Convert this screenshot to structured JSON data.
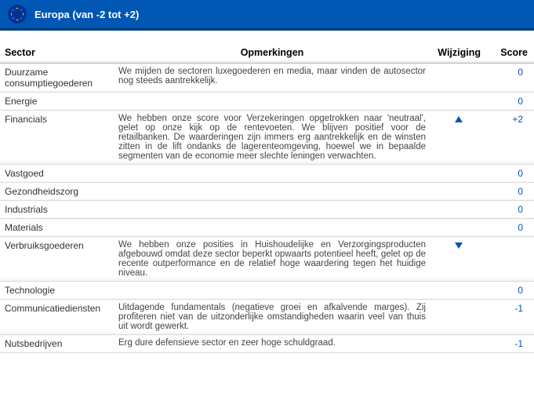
{
  "header": {
    "title": "Europa (van -2 tot +2)"
  },
  "columns": {
    "sector": "Sector",
    "remarks": "Opmerkingen",
    "change": "Wijziging",
    "score": "Score"
  },
  "rows": [
    {
      "sector": "Duurzame consumptiegoederen",
      "remarks": "We mijden de sectoren luxegoederen en media, maar vinden de autosector nog steeds aantrekkelijk.",
      "change": "",
      "score": "0"
    },
    {
      "sector": "Energie",
      "remarks": "",
      "change": "",
      "score": "0"
    },
    {
      "sector": "Financials",
      "remarks": "We hebben onze score voor Verzekeringen opgetrokken naar 'neutraal', gelet op onze kijk op de rentevoeten. We blijven positief voor de retailbanken. De waarderingen zijn immers erg aantrekkelijk en de winsten zitten in de lift ondanks de lagerenteomgeving, hoewel we in bepaalde segmenten van de economie meer slechte leningen verwachten.",
      "change": "up",
      "score": "+2"
    },
    {
      "sector": "Vastgoed",
      "remarks": "",
      "change": "",
      "score": "0"
    },
    {
      "sector": "Gezondheidszorg",
      "remarks": "",
      "change": "",
      "score": "0"
    },
    {
      "sector": "Industrials",
      "remarks": "",
      "change": "",
      "score": "0"
    },
    {
      "sector": "Materials",
      "remarks": "",
      "change": "",
      "score": "0"
    },
    {
      "sector": "Verbruiksgoederen",
      "remarks": "We hebben onze posities in Huishoudelijke en Verzorgingsproducten afgebouwd omdat deze sector beperkt opwaarts potentieel heeft, gelet op de recente outperformance en de relatief hoge waardering tegen het huidige niveau.",
      "change": "down",
      "score": ""
    },
    {
      "sector": "Technologie",
      "remarks": "",
      "change": "",
      "score": "0"
    },
    {
      "sector": "Communicatiediensten",
      "remarks": "Uitdagende fundamentals (negatieve groei en afkalvende marges). Zij profiteren niet van de uitzonderlijke omstandigheden waarin veel van thuis uit wordt gewerkt.",
      "change": "",
      "score": "-1"
    },
    {
      "sector": "Nutsbedrijven",
      "remarks": "Erg dure defensieve sector en zeer hoge schuldgraad.",
      "change": "",
      "score": "-1"
    }
  ]
}
